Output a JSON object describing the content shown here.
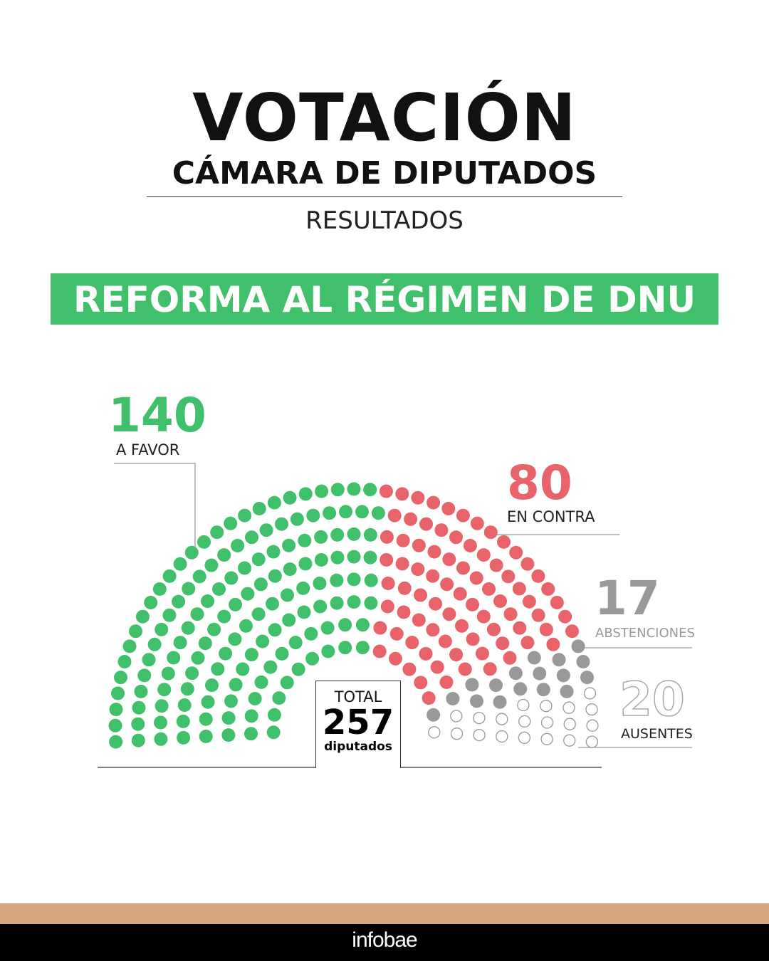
{
  "header": {
    "title": "VOTACIÓN",
    "subtitle": "CÁMARA DE DIPUTADOS",
    "section": "RESULTADOS"
  },
  "banner": {
    "text": "REFORMA AL RÉGIMEN DE DNU",
    "color": "#40c06a"
  },
  "chart_data": {
    "type": "parliament",
    "total_label": "TOTAL",
    "total": "257",
    "total_unit": "diputados",
    "series": [
      {
        "name": "A FAVOR",
        "value": 140,
        "display": "140",
        "color": "#40c06a",
        "fill": true
      },
      {
        "name": "EN CONTRA",
        "value": 80,
        "display": "80",
        "color": "#e8636a",
        "fill": true
      },
      {
        "name": "ABSTENCIONES",
        "value": 17,
        "display": "17",
        "color": "#999999",
        "fill": true
      },
      {
        "name": "AUSENTES",
        "value": 20,
        "display": "20",
        "color": "#999999",
        "fill": false
      }
    ]
  },
  "footer": {
    "brand": "infobae"
  }
}
